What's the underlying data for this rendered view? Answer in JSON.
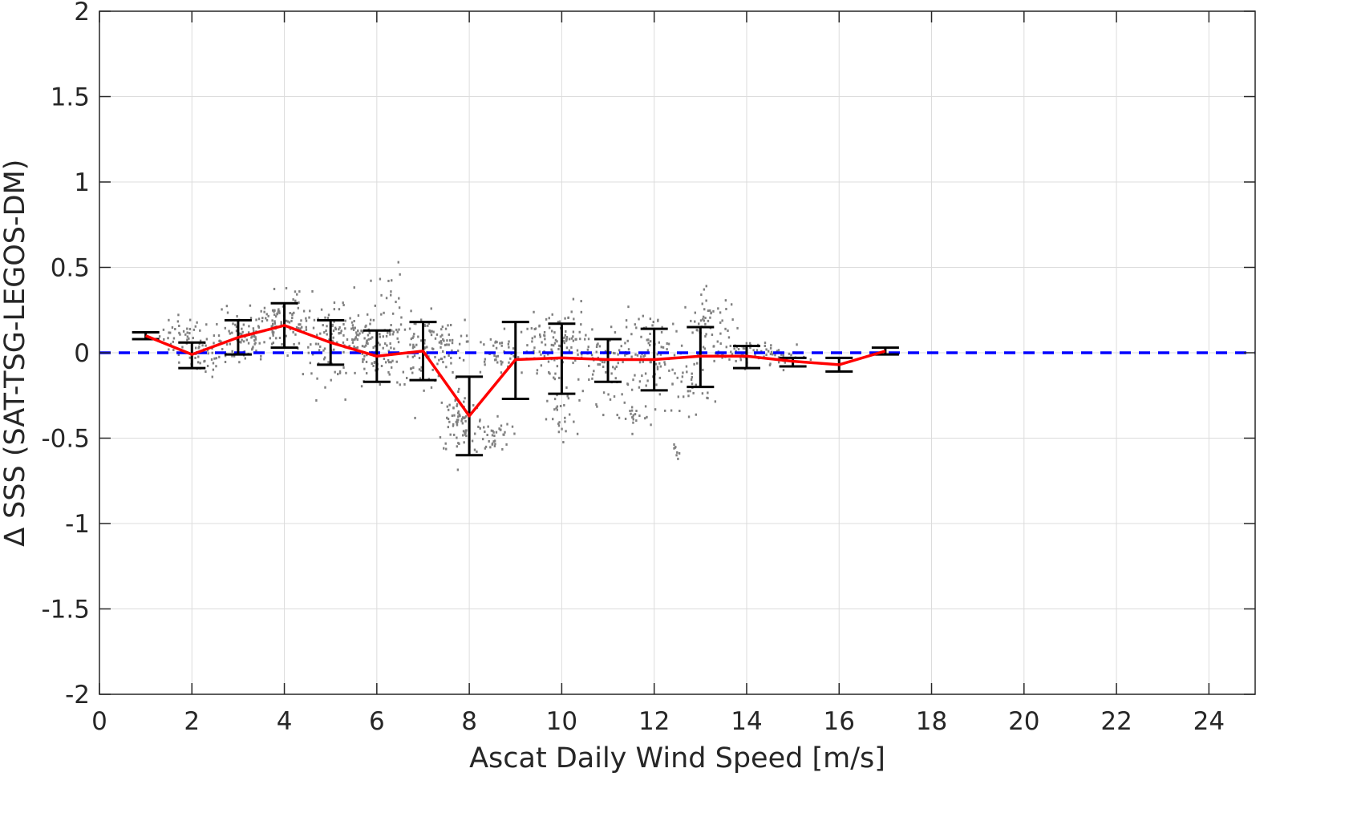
{
  "chart_data": {
    "type": "scatter",
    "xlabel": "Ascat Daily Wind Speed [m/s]",
    "ylabel": "∆ SSS (SAT-TSG-LEGOS-DM)",
    "xlim": [
      0,
      25
    ],
    "ylim": [
      -2,
      2
    ],
    "x_ticks": [
      0,
      2,
      4,
      6,
      8,
      10,
      12,
      14,
      16,
      18,
      20,
      22,
      24
    ],
    "y_ticks": [
      -2,
      -1.5,
      -1,
      -0.5,
      0,
      0.5,
      1,
      1.5,
      2
    ],
    "y_tick_labels": [
      "-2",
      "-1.5",
      "-1",
      "-0.5",
      "0",
      "0.5",
      "1",
      "1.5",
      "2"
    ],
    "grid": true,
    "colors": {
      "scatter": "#808080",
      "mean_line": "#ff0000",
      "error_bars": "#000000",
      "zero_line": "#0000ff",
      "grid": "#dcdcdc",
      "axes": "#262626"
    },
    "reference_line": {
      "y": 0,
      "style": "dashed"
    },
    "binned": {
      "x": [
        1,
        2,
        3,
        4,
        5,
        6,
        7,
        8,
        9,
        10,
        11,
        12,
        13,
        14,
        15,
        16,
        17
      ],
      "mean": [
        0.1,
        -0.01,
        0.09,
        0.16,
        0.06,
        -0.02,
        0.01,
        -0.37,
        -0.04,
        -0.03,
        -0.04,
        -0.04,
        -0.02,
        -0.02,
        -0.05,
        -0.07,
        0.01
      ],
      "lower": [
        0.08,
        -0.09,
        -0.01,
        0.03,
        -0.07,
        -0.17,
        -0.16,
        -0.6,
        -0.27,
        -0.24,
        -0.17,
        -0.22,
        -0.2,
        -0.09,
        -0.08,
        -0.11,
        -0.01
      ],
      "upper": [
        0.12,
        0.06,
        0.19,
        0.29,
        0.19,
        0.13,
        0.18,
        -0.14,
        0.18,
        0.17,
        0.08,
        0.14,
        0.15,
        0.04,
        -0.03,
        -0.03,
        0.03
      ]
    },
    "scatter_clusters": [
      {
        "x": 1.8,
        "y": 0.1,
        "sx": 0.25,
        "sy": 0.06,
        "n": 40
      },
      {
        "x": 2.3,
        "y": -0.02,
        "sx": 0.2,
        "sy": 0.06,
        "n": 40
      },
      {
        "x": 3.0,
        "y": 0.08,
        "sx": 0.3,
        "sy": 0.08,
        "n": 70
      },
      {
        "x": 3.8,
        "y": 0.17,
        "sx": 0.3,
        "sy": 0.09,
        "n": 80
      },
      {
        "x": 4.3,
        "y": 0.22,
        "sx": 0.15,
        "sy": 0.08,
        "n": 30
      },
      {
        "x": 5.0,
        "y": 0.06,
        "sx": 0.3,
        "sy": 0.1,
        "n": 80
      },
      {
        "x": 5.6,
        "y": 0.12,
        "sx": 0.2,
        "sy": 0.08,
        "n": 40
      },
      {
        "x": 6.0,
        "y": -0.02,
        "sx": 0.3,
        "sy": 0.1,
        "n": 80
      },
      {
        "x": 6.3,
        "y": 0.3,
        "sx": 0.15,
        "sy": 0.12,
        "n": 25
      },
      {
        "x": 7.0,
        "y": 0.02,
        "sx": 0.3,
        "sy": 0.1,
        "n": 80
      },
      {
        "x": 7.5,
        "y": 0.03,
        "sx": 0.2,
        "sy": 0.08,
        "n": 40
      },
      {
        "x": 7.8,
        "y": -0.4,
        "sx": 0.25,
        "sy": 0.1,
        "n": 70
      },
      {
        "x": 8.5,
        "y": -0.48,
        "sx": 0.2,
        "sy": 0.06,
        "n": 40
      },
      {
        "x": 8.6,
        "y": 0.0,
        "sx": 0.25,
        "sy": 0.06,
        "n": 40
      },
      {
        "x": 9.5,
        "y": 0.0,
        "sx": 0.3,
        "sy": 0.08,
        "n": 50
      },
      {
        "x": 10.0,
        "y": 0.1,
        "sx": 0.3,
        "sy": 0.1,
        "n": 60
      },
      {
        "x": 10.0,
        "y": -0.4,
        "sx": 0.15,
        "sy": 0.08,
        "n": 25
      },
      {
        "x": 11.0,
        "y": -0.05,
        "sx": 0.4,
        "sy": 0.12,
        "n": 80
      },
      {
        "x": 11.5,
        "y": -0.38,
        "sx": 0.2,
        "sy": 0.04,
        "n": 20
      },
      {
        "x": 12.0,
        "y": 0.0,
        "sx": 0.35,
        "sy": 0.12,
        "n": 70
      },
      {
        "x": 12.5,
        "y": -0.6,
        "sx": 0.05,
        "sy": 0.03,
        "n": 8
      },
      {
        "x": 12.8,
        "y": -0.2,
        "sx": 0.2,
        "sy": 0.08,
        "n": 30
      },
      {
        "x": 13.2,
        "y": 0.15,
        "sx": 0.3,
        "sy": 0.1,
        "n": 60
      },
      {
        "x": 14.0,
        "y": 0.0,
        "sx": 0.35,
        "sy": 0.04,
        "n": 60
      },
      {
        "x": 14.8,
        "y": -0.03,
        "sx": 0.25,
        "sy": 0.03,
        "n": 20
      }
    ]
  }
}
